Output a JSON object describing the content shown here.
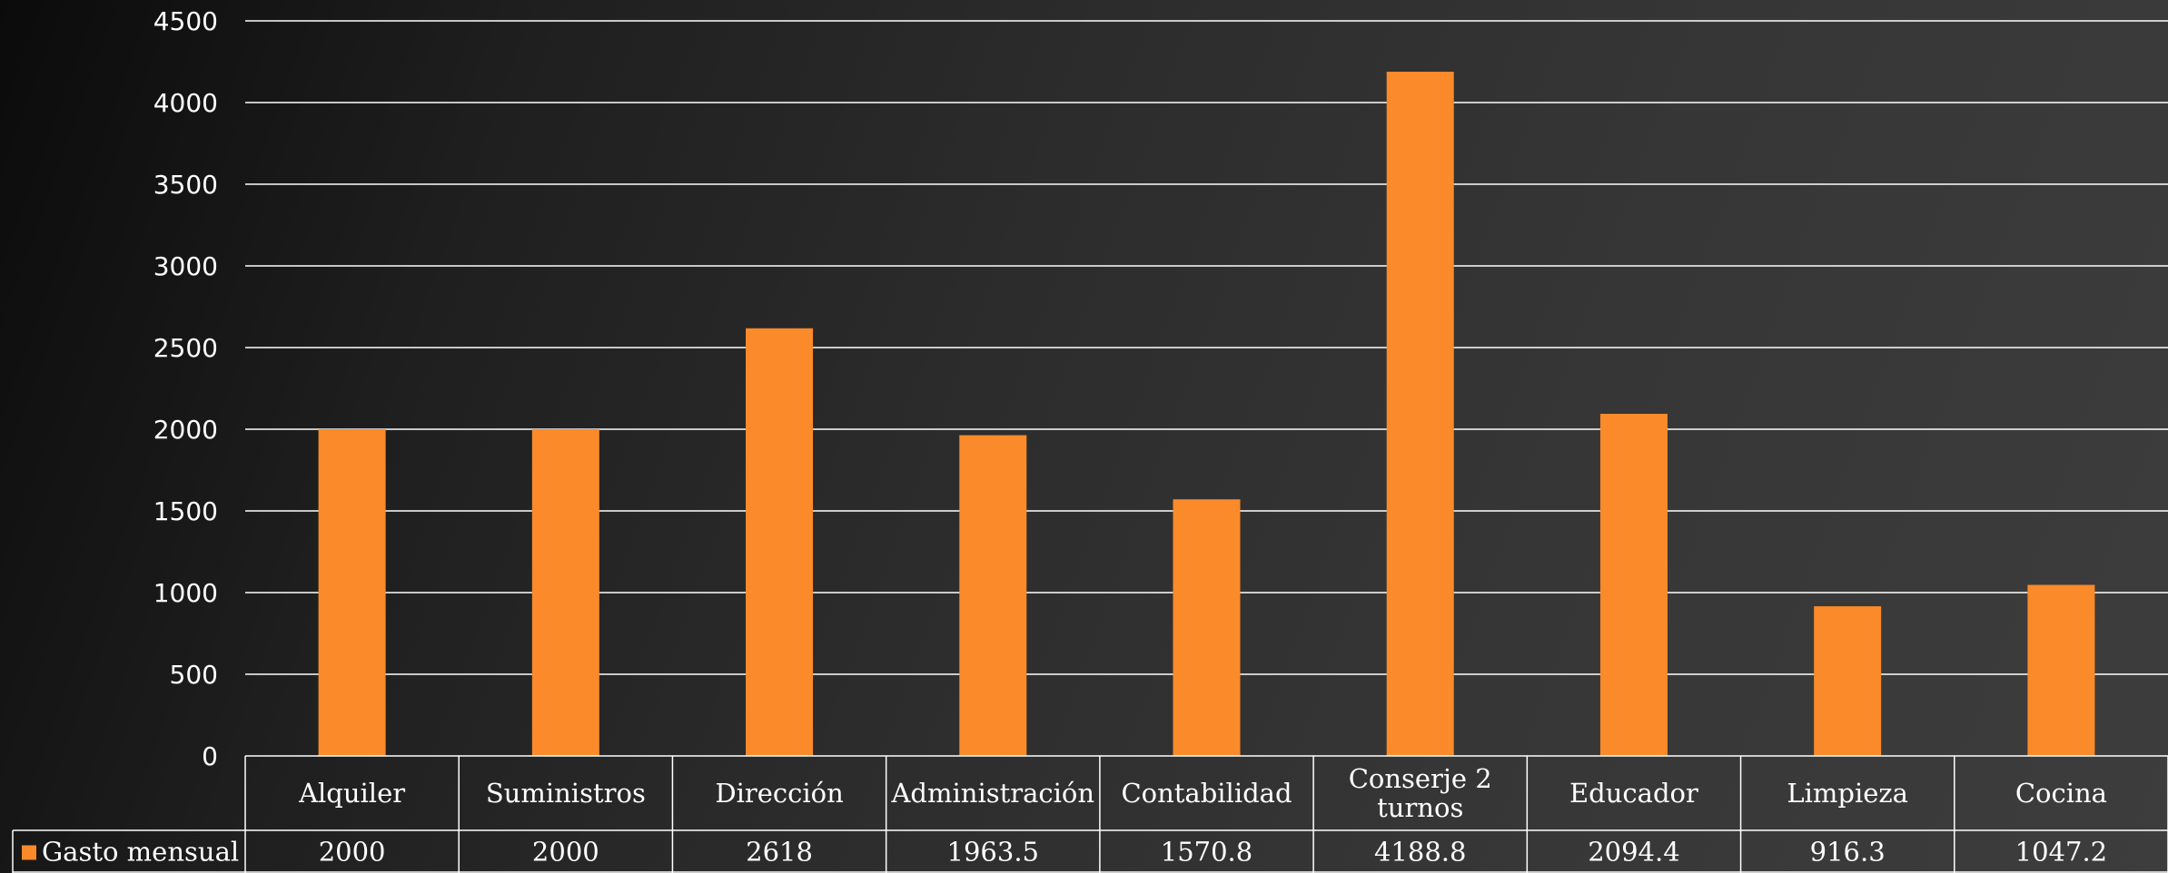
{
  "chart_data": {
    "type": "bar",
    "categories": [
      "Alquiler",
      "Suministros",
      "Dirección",
      "Administración",
      "Contabilidad",
      "Conserje 2 turnos",
      "Educador",
      "Limpieza",
      "Cocina"
    ],
    "series": [
      {
        "name": "Gasto mensual",
        "values": [
          2000,
          2000,
          2618,
          1963.5,
          1570.8,
          4188.8,
          2094.4,
          916.3,
          1047.2
        ],
        "value_labels": [
          "2000",
          "2000",
          "2618",
          "1963.5",
          "1570.8",
          "4188.8",
          "2094.4",
          "916.3",
          "1047.2"
        ],
        "color": "#fb8a2a"
      }
    ],
    "ylim": [
      0,
      4500
    ],
    "y_ticks": [
      0,
      500,
      1000,
      1500,
      2000,
      2500,
      3000,
      3500,
      4000,
      4500
    ],
    "grid": true,
    "data_table": true,
    "legend": "data-table-left",
    "colors": {
      "gridline": "#ffffff",
      "text": "#ffffff",
      "bar": "#fb8a2a"
    }
  }
}
